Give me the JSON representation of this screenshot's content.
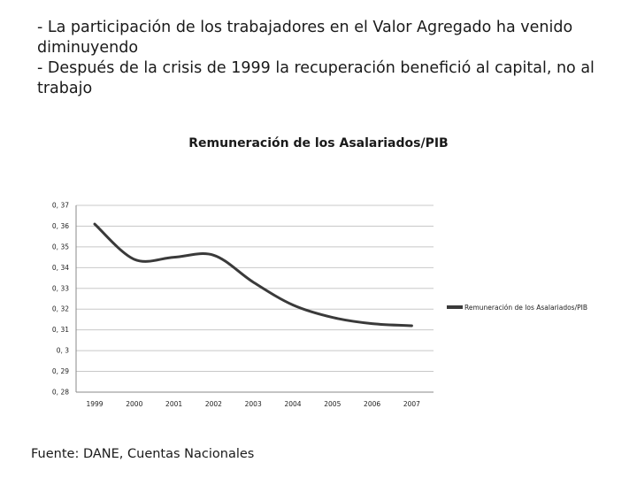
{
  "bullets": [
    "- La participación de los trabajadores en el Valor Agregado ha venido diminuyendo",
    "- Después de la crisis de 1999 la recuperación benefició al capital, no al trabajo"
  ],
  "source": "Fuente: DANE, Cuentas Nacionales",
  "chart_data": {
    "type": "line",
    "title": "Remuneración de los Asalariados/PIB",
    "xlabel": "",
    "ylabel": "",
    "categories": [
      "1999",
      "2000",
      "2001",
      "2002",
      "2003",
      "2004",
      "2005",
      "2006",
      "2007"
    ],
    "y_tick_labels": [
      "0, 37",
      "0, 36",
      "0, 35",
      "0, 34",
      "0, 33",
      "0, 32",
      "0, 31",
      "0, 3",
      "0, 29",
      "0, 28"
    ],
    "ylim": [
      0.28,
      0.37
    ],
    "grid": true,
    "legend_position": "right",
    "series": [
      {
        "name": "Remuneración de los Asalariados/PIB",
        "color": "#3a3a3a",
        "values": [
          0.361,
          0.344,
          0.345,
          0.346,
          0.333,
          0.322,
          0.316,
          0.313,
          0.312
        ]
      }
    ]
  }
}
